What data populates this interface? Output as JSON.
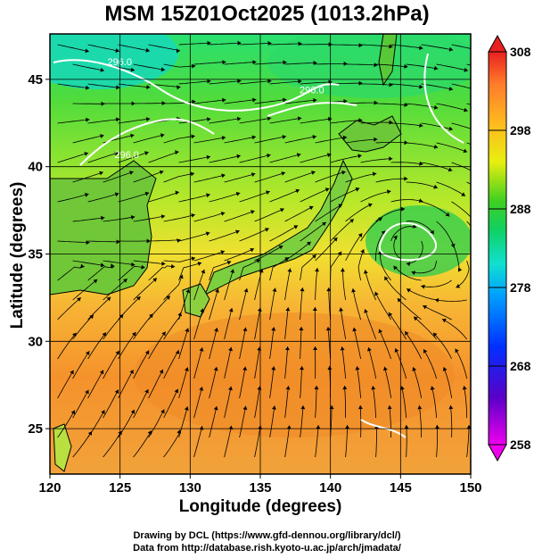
{
  "title": "MSM 15Z01Oct2025 (1013.2hPa)",
  "xlabel": "Longitude (degrees)",
  "ylabel": "Latitude  (degrees)",
  "credits": [
    "Drawing by DCL (https://www.gfd-dennou.org/library/dcl/)",
    "Data from http://database.rish.kyoto-u.ac.jp/arch/jmadata/"
  ],
  "map": {
    "lon_range": [
      120,
      150
    ],
    "lat_range": [
      22.4,
      47.6
    ],
    "lon_ticks": [
      120,
      125,
      130,
      135,
      140,
      145,
      150
    ],
    "lon_tick_labels": [
      "120",
      "125",
      "130",
      "135",
      "140",
      "145",
      "150"
    ],
    "lat_ticks": [
      25,
      30,
      35,
      40,
      45
    ],
    "lat_tick_labels": [
      "25",
      "30",
      "35",
      "40",
      "45"
    ],
    "grid": true,
    "contour_labels": [
      {
        "text": "296.0",
        "lon": 124.6,
        "lat": 40.5
      },
      {
        "text": "296.0",
        "lon": 124.1,
        "lat": 45.8
      },
      {
        "text": "296.0",
        "lon": 137.8,
        "lat": 44.2
      }
    ]
  },
  "colorbar": {
    "min": 258,
    "max": 308,
    "tick_values": [
      308,
      298,
      288,
      278,
      268,
      258
    ],
    "tick_labels": [
      "308",
      "298",
      "288",
      "278",
      "268",
      "258"
    ]
  }
}
